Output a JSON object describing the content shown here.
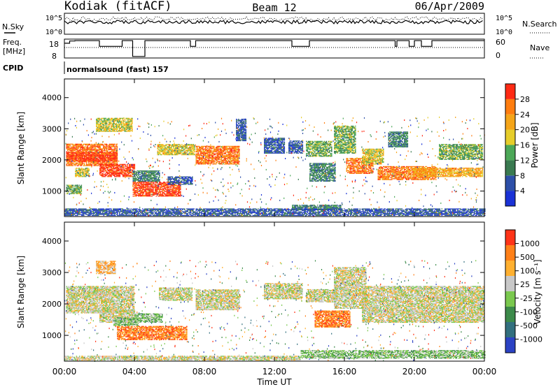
{
  "header": {
    "station": "Kodiak (fitACF)",
    "beam": "Beam 12",
    "date": "06/Apr/2009"
  },
  "noise_panel": {
    "left_label": "N.Sky",
    "right_label": "N.Search",
    "left_ticks": [
      "10^5",
      "10^0"
    ],
    "right_ticks": [
      "10^5",
      "10^0"
    ]
  },
  "freq_panel": {
    "left_label_1": "Freq.",
    "left_label_2": "[MHz]",
    "left_ticks": [
      "18",
      "8"
    ],
    "right_ticks": [
      "60",
      "0"
    ],
    "right_label": "Nave",
    "step_series_hours": [
      0,
      0.3,
      0.6,
      2.0,
      3.3,
      3.9,
      4.6,
      5.3,
      7.2,
      7.5,
      10.0,
      13.0,
      14.0,
      16.0,
      18.0,
      18.9,
      19.0,
      19.7,
      20.0,
      20.4,
      21.0,
      22.0,
      24.0
    ],
    "step_series_level": [
      0.78,
      0.9,
      0.92,
      0.62,
      0.92,
      0.08,
      0.92,
      0.92,
      0.62,
      0.92,
      0.92,
      0.62,
      0.92,
      0.92,
      0.92,
      0.62,
      0.92,
      0.62,
      0.92,
      0.62,
      0.92,
      0.92,
      0.92
    ]
  },
  "cpid": {
    "label": "CPID",
    "text": "normalsound (fast) 157"
  },
  "power_panel": {
    "ylabel": "Slant Range [km]",
    "colorbar_label": "Power [dB]",
    "colorbar_ticks": [
      "28",
      "24",
      "20",
      "16",
      "12",
      "8",
      "4"
    ]
  },
  "velocity_panel": {
    "ylabel": "Slant Range [km]",
    "colorbar_label": "Velocity [m s⁻¹]",
    "colorbar_ticks": [
      "1000",
      "500",
      "100",
      "25",
      "-25",
      "-100",
      "-500",
      "-1000"
    ]
  },
  "xaxis": {
    "label": "Time UT"
  },
  "chart_data": {
    "type": "heatmap",
    "x": {
      "unit": "hour UT",
      "min": 0,
      "max": 24,
      "ticks": [
        "00:00",
        "04:00",
        "08:00",
        "12:00",
        "16:00",
        "20:00",
        "00:00"
      ]
    },
    "y": {
      "unit": "km",
      "min": 180,
      "max": 4600,
      "ticks": [
        "1000",
        "2000",
        "3000",
        "4000"
      ]
    },
    "power_colors": [
      "#1a32d6",
      "#2d4fa8",
      "#3a7a50",
      "#4ca858",
      "#e6cd2a",
      "#f5a519",
      "#ff7d0f",
      "#ff2a14"
    ],
    "velocity_colors": [
      "#2b42c4",
      "#326f7e",
      "#3c8a4a",
      "#7ac84e",
      "#c8c8c8",
      "#ffb030",
      "#ff8018",
      "#ff3418"
    ],
    "power_blobs": [
      {
        "t0": 0.1,
        "t1": 3.0,
        "r0": 1800,
        "r1": 2500,
        "level": 6
      },
      {
        "t0": 0.1,
        "t1": 3.0,
        "r0": 1950,
        "r1": 2250,
        "level": 7
      },
      {
        "t0": 0.1,
        "t1": 1.0,
        "r0": 900,
        "r1": 1200,
        "level": 3
      },
      {
        "t0": 0.6,
        "t1": 1.4,
        "r0": 1450,
        "r1": 1750,
        "level": 4
      },
      {
        "t0": 1.8,
        "t1": 3.9,
        "r0": 2900,
        "r1": 3350,
        "level": 4
      },
      {
        "t0": 2.0,
        "t1": 4.0,
        "r0": 1450,
        "r1": 1850,
        "level": 7
      },
      {
        "t0": 3.9,
        "t1": 5.4,
        "r0": 1300,
        "r1": 1650,
        "level": 2
      },
      {
        "t0": 3.9,
        "t1": 6.6,
        "r0": 820,
        "r1": 1300,
        "level": 7
      },
      {
        "t0": 5.3,
        "t1": 7.4,
        "r0": 2150,
        "r1": 2500,
        "level": 4
      },
      {
        "t0": 5.9,
        "t1": 7.3,
        "r0": 1200,
        "r1": 1450,
        "level": 1
      },
      {
        "t0": 7.5,
        "t1": 10.0,
        "r0": 1850,
        "r1": 2450,
        "level": 6
      },
      {
        "t0": 9.8,
        "t1": 10.4,
        "r0": 2600,
        "r1": 3300,
        "level": 1
      },
      {
        "t0": 11.4,
        "t1": 12.6,
        "r0": 2200,
        "r1": 2700,
        "level": 1
      },
      {
        "t0": 12.8,
        "t1": 13.6,
        "r0": 2200,
        "r1": 2600,
        "level": 1
      },
      {
        "t0": 13.8,
        "t1": 15.3,
        "r0": 2100,
        "r1": 2600,
        "level": 3
      },
      {
        "t0": 14.0,
        "t1": 15.5,
        "r0": 1300,
        "r1": 1900,
        "level": 2
      },
      {
        "t0": 15.4,
        "t1": 16.6,
        "r0": 2200,
        "r1": 3100,
        "level": 3
      },
      {
        "t0": 16.1,
        "t1": 17.6,
        "r0": 1550,
        "r1": 2050,
        "level": 6
      },
      {
        "t0": 17.0,
        "t1": 18.2,
        "r0": 1850,
        "r1": 2350,
        "level": 4
      },
      {
        "t0": 17.9,
        "t1": 21.2,
        "r0": 1350,
        "r1": 1800,
        "level": 6
      },
      {
        "t0": 18.5,
        "t1": 19.6,
        "r0": 2400,
        "r1": 2900,
        "level": 2
      },
      {
        "t0": 19.9,
        "t1": 22.1,
        "r0": 1450,
        "r1": 1750,
        "level": 5
      },
      {
        "t0": 21.4,
        "t1": 23.9,
        "r0": 2000,
        "r1": 2500,
        "level": 3
      },
      {
        "t0": 22.0,
        "t1": 23.9,
        "r0": 1450,
        "r1": 1750,
        "level": 5
      },
      {
        "t0": 13.0,
        "t1": 15.8,
        "r0": 380,
        "r1": 560,
        "level": 2
      },
      {
        "t0": 0.0,
        "t1": 24.0,
        "r0": 200,
        "r1": 430,
        "level": 1
      }
    ],
    "velocity_blobs": [
      {
        "t0": 0.1,
        "t1": 4.0,
        "r0": 1700,
        "r1": 2550,
        "level": 4
      },
      {
        "t0": 1.8,
        "t1": 2.9,
        "r0": 2950,
        "r1": 3350,
        "level": 5
      },
      {
        "t0": 2.0,
        "t1": 4.0,
        "r0": 1400,
        "r1": 1800,
        "level": 4
      },
      {
        "t0": 2.8,
        "t1": 4.2,
        "r0": 1300,
        "r1": 1550,
        "level": 3
      },
      {
        "t0": 4.0,
        "t1": 5.6,
        "r0": 1400,
        "r1": 1700,
        "level": 3
      },
      {
        "t0": 3.0,
        "t1": 7.0,
        "r0": 850,
        "r1": 1300,
        "level": 6
      },
      {
        "t0": 5.4,
        "t1": 7.3,
        "r0": 2100,
        "r1": 2500,
        "level": 4
      },
      {
        "t0": 7.5,
        "t1": 10.0,
        "r0": 1800,
        "r1": 2450,
        "level": 4
      },
      {
        "t0": 11.4,
        "t1": 13.6,
        "r0": 2150,
        "r1": 2650,
        "level": 4
      },
      {
        "t0": 13.8,
        "t1": 15.6,
        "r0": 2050,
        "r1": 2450,
        "level": 4
      },
      {
        "t0": 14.3,
        "t1": 16.3,
        "r0": 1250,
        "r1": 1780,
        "level": 6
      },
      {
        "t0": 15.4,
        "t1": 17.2,
        "r0": 1850,
        "r1": 3150,
        "level": 4
      },
      {
        "t0": 17.0,
        "t1": 24.0,
        "r0": 1400,
        "r1": 2550,
        "level": 4
      },
      {
        "t0": 13.5,
        "t1": 24.0,
        "r0": 260,
        "r1": 520,
        "level": 3
      },
      {
        "t0": 0.0,
        "t1": 13.5,
        "r0": 200,
        "r1": 330,
        "level": 4
      }
    ]
  }
}
